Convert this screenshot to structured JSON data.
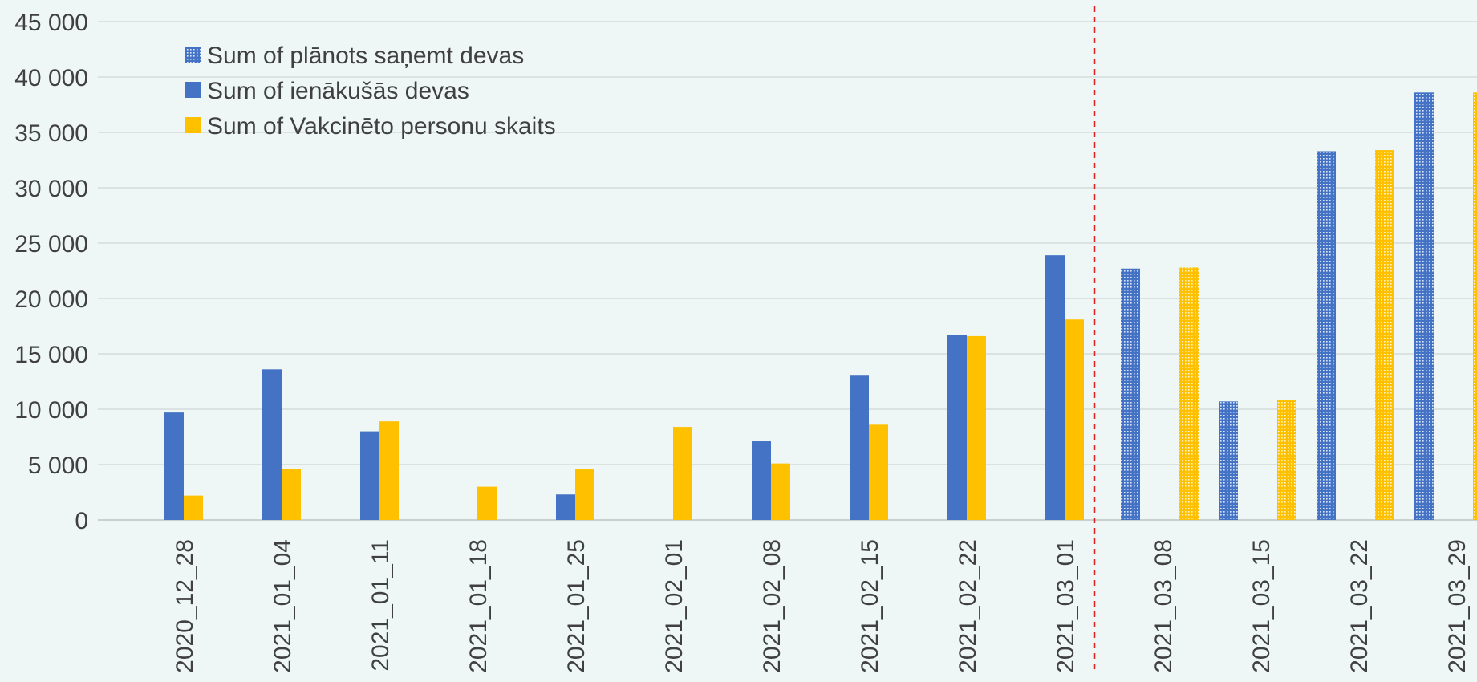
{
  "chart_data": {
    "type": "bar",
    "categories": [
      "2020_12_28",
      "2021_01_04",
      "2021_01_11",
      "2021_01_18",
      "2021_01_25",
      "2021_02_01",
      "2021_02_08",
      "2021_02_15",
      "2021_02_22",
      "2021_03_01",
      "2021_03_08",
      "2021_03_15",
      "2021_03_22",
      "2021_03_29"
    ],
    "series": [
      {
        "name": "Sum of plānots saņemt devas",
        "style": "dotted",
        "color": "#4472c4",
        "values": [
          null,
          null,
          null,
          null,
          null,
          null,
          null,
          null,
          null,
          null,
          22700,
          10700,
          33300,
          38600
        ]
      },
      {
        "name": "Sum of ienākušās devas",
        "style": "solid",
        "color": "#4472c4",
        "values": [
          9700,
          13600,
          8000,
          null,
          2300,
          null,
          7100,
          13100,
          16700,
          23900,
          null,
          null,
          null,
          null
        ]
      },
      {
        "name": "Sum of Vakcinēto personu skaits",
        "style": "mixed",
        "color": "#ffc000",
        "values": [
          2200,
          4600,
          8900,
          3000,
          4600,
          8400,
          5100,
          8600,
          16600,
          18100,
          22800,
          10800,
          33400,
          38600
        ]
      }
    ],
    "ylim": [
      0,
      45000
    ],
    "yticks": [
      "0",
      "5 000",
      "10 000",
      "15 000",
      "20 000",
      "25 000",
      "30 000",
      "35 000",
      "40 000",
      "45 000"
    ],
    "ytick_values": [
      0,
      5000,
      10000,
      15000,
      20000,
      25000,
      30000,
      35000,
      40000,
      45000
    ],
    "grid": true,
    "legend_position": "top-left",
    "divider_after_category": "2021_03_01",
    "divider_color": "#e02020",
    "title": "",
    "xlabel": "",
    "ylabel": ""
  }
}
